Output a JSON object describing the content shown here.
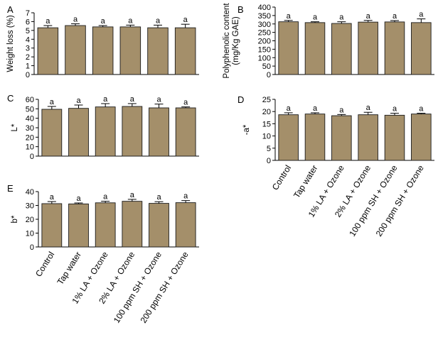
{
  "chart_data": [
    {
      "panel": "A",
      "type": "bar",
      "ylabel": [
        "Weight loss (%)"
      ],
      "ylim": [
        0,
        7
      ],
      "yticks": [
        0,
        1,
        2,
        3,
        4,
        5,
        6,
        7
      ],
      "categories": [
        "Control",
        "Tap water",
        "1% LA + Ozone",
        "2% LA + Ozone",
        "100 ppm SH + Ozone",
        "200 ppm SH + Ozone"
      ],
      "values": [
        5.3,
        5.55,
        5.4,
        5.4,
        5.3,
        5.3
      ],
      "errors": [
        0.25,
        0.2,
        0.15,
        0.2,
        0.3,
        0.4
      ],
      "labels": [
        "a",
        "a",
        "a",
        "a",
        "a",
        "a"
      ],
      "show_categories": false
    },
    {
      "panel": "B",
      "type": "bar",
      "ylabel": [
        "Polyphenolic content",
        "(mg/Kg GAE)"
      ],
      "ylim": [
        0,
        400
      ],
      "yticks": [
        0,
        50,
        100,
        150,
        200,
        250,
        300,
        350,
        400
      ],
      "categories": [
        "Control",
        "Tap water",
        "1% LA + Ozone",
        "2% LA + Ozone",
        "100 ppm SH + Ozone",
        "200 ppm SH + Ozone"
      ],
      "values": [
        313,
        308,
        303,
        311,
        312,
        308
      ],
      "errors": [
        8,
        5,
        10,
        10,
        8,
        22
      ],
      "labels": [
        "a",
        "a",
        "a",
        "a",
        "a",
        "a"
      ],
      "show_categories": false
    },
    {
      "panel": "C",
      "type": "bar",
      "ylabel": [
        "L*"
      ],
      "ylim": [
        0,
        60
      ],
      "yticks": [
        0,
        10,
        20,
        30,
        40,
        50,
        60
      ],
      "categories": [
        "Control",
        "Tap water",
        "1% LA + Ozone",
        "2% LA + Ozone",
        "100 ppm SH + Ozone",
        "200 ppm SH + Ozone"
      ],
      "values": [
        49.5,
        50.5,
        52,
        52.5,
        51,
        51
      ],
      "errors": [
        3,
        3.5,
        3.5,
        3,
        4,
        1
      ],
      "labels": [
        "a",
        "a",
        "a",
        "a",
        "a",
        "a"
      ],
      "show_categories": false
    },
    {
      "panel": "D",
      "type": "bar",
      "ylabel": [
        "-a*"
      ],
      "ylim": [
        0,
        25
      ],
      "yticks": [
        0,
        5,
        10,
        15,
        20,
        25
      ],
      "categories": [
        "Control",
        "Tap water",
        "1% LA + Ozone",
        "2% LA + Ozone",
        "100 ppm SH + Ozone",
        "200 ppm SH + Ozone"
      ],
      "values": [
        18.7,
        19,
        18.3,
        18.7,
        18.5,
        19
      ],
      "errors": [
        0.8,
        0.5,
        0.5,
        1.0,
        0.8,
        0.3
      ],
      "labels": [
        "a",
        "a",
        "a",
        "a",
        "a",
        "a"
      ],
      "show_categories": true
    },
    {
      "panel": "E",
      "type": "bar",
      "ylabel": [
        "b*"
      ],
      "ylim": [
        0,
        40
      ],
      "yticks": [
        0,
        10,
        20,
        30,
        40
      ],
      "categories": [
        "Control",
        "Tap water",
        "1% LA + Ozone",
        "2% LA + Ozone",
        "100 ppm SH + Ozone",
        "200 ppm SH + Ozone"
      ],
      "values": [
        31.3,
        31.1,
        31.9,
        33,
        31.5,
        32
      ],
      "errors": [
        1.5,
        0.7,
        1.1,
        1.4,
        1.2,
        1.5
      ],
      "labels": [
        "a",
        "a",
        "a",
        "a",
        "a",
        "a"
      ],
      "show_categories": true
    }
  ]
}
